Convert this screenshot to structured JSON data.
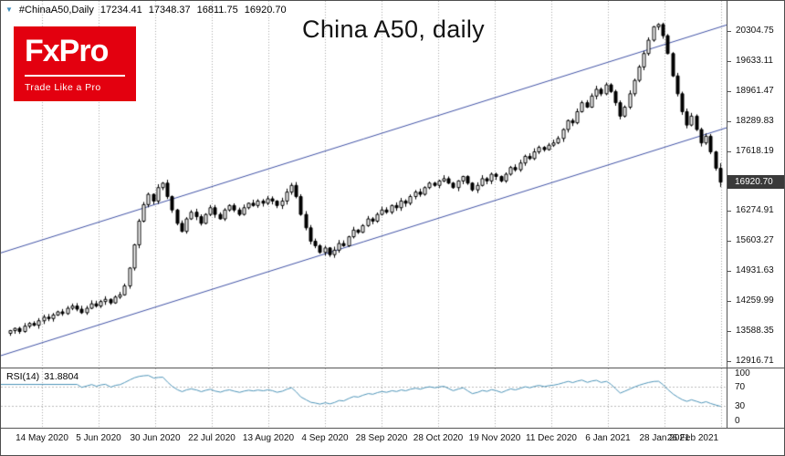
{
  "quote_bar": {
    "symbol": "#ChinaA50,Daily",
    "open": "17234.41",
    "high": "17348.37",
    "low": "16811.75",
    "close": "16920.70",
    "icon_color": "#3c8dbc"
  },
  "title": "China A50, daily",
  "logo": {
    "brand": "FxPro",
    "tagline": "Trade Like a Pro",
    "bg_color": "#e3000f",
    "text_color": "#ffffff"
  },
  "price_axis": {
    "current_price_tag": {
      "text": "16920.70",
      "bg": "#3a3a3a",
      "text_color": "#ffffff"
    }
  },
  "chart_data": {
    "type": "candlestick",
    "symbol": "#ChinaA50,Daily",
    "timeframe": "daily",
    "title": "China A50, daily",
    "y_axis": {
      "top": 20304.75,
      "step": 671.64,
      "bottom": 12916.71
    },
    "y_ticks": [
      "20304.75",
      "19633.11",
      "18961.47",
      "18289.83",
      "17618.19",
      "16946.55",
      "16274.91",
      "15603.27",
      "14931.63",
      "14259.99",
      "13588.35",
      "12916.71"
    ],
    "x_ticks": [
      "14 May 2020",
      "5 Jun 2020",
      "30 Jun 2020",
      "22 Jul 2020",
      "13 Aug 2020",
      "4 Sep 2020",
      "28 Sep 2020",
      "28 Oct 2020",
      "19 Nov 2020",
      "11 Dec 2020",
      "6 Jan 2021",
      "28 Jan 2021",
      "26 Feb 2021"
    ],
    "closes": [
      13600,
      13650,
      13580,
      13700,
      13760,
      13720,
      13820,
      13900,
      13870,
      13950,
      14020,
      13980,
      14100,
      14150,
      14080,
      14000,
      14100,
      14200,
      14150,
      14250,
      14300,
      14220,
      14350,
      14400,
      14600,
      15000,
      15520,
      16050,
      16420,
      16650,
      16500,
      16800,
      16900,
      16600,
      16300,
      16000,
      15820,
      16100,
      16250,
      16150,
      16000,
      16200,
      16350,
      16200,
      16100,
      16300,
      16400,
      16300,
      16200,
      16350,
      16450,
      16400,
      16500,
      16450,
      16550,
      16500,
      16400,
      16500,
      16700,
      16850,
      16600,
      16200,
      15900,
      15600,
      15500,
      15350,
      15450,
      15300,
      15400,
      15550,
      15500,
      15700,
      15850,
      15800,
      15950,
      16100,
      16050,
      16200,
      16300,
      16250,
      16400,
      16350,
      16500,
      16450,
      16600,
      16700,
      16650,
      16800,
      16900,
      16850,
      16950,
      17000,
      16900,
      16800,
      16950,
      17050,
      16900,
      16750,
      16850,
      17000,
      16950,
      17100,
      17050,
      16950,
      17100,
      17250,
      17200,
      17350,
      17500,
      17450,
      17600,
      17700,
      17650,
      17750,
      17800,
      17900,
      18100,
      18300,
      18250,
      18500,
      18700,
      18600,
      18850,
      19000,
      18900,
      19100,
      18950,
      18700,
      18400,
      18600,
      18900,
      19200,
      19500,
      19800,
      20100,
      20400,
      20450,
      20200,
      19800,
      19300,
      18900,
      18500,
      18200,
      18400,
      18100,
      17800,
      17950,
      17600,
      17234.41,
      16920.7
    ],
    "last_ohlc": {
      "open": 17234.41,
      "high": 17348.37,
      "low": 16811.75,
      "close": 16920.7
    },
    "trend_channel": {
      "color": "#3f51a5",
      "lower": {
        "start_price": 13050,
        "end_price": 18150
      },
      "upper": {
        "start_price": 15350,
        "end_price": 20450
      }
    },
    "indicator": {
      "name": "RSI",
      "period": 14,
      "label": "RSI(14)",
      "value_text": "31.8804",
      "levels": [
        70,
        30
      ],
      "scale_labels": [
        "100",
        "70",
        "30",
        "0"
      ],
      "line_color": "#4d94b8"
    },
    "candle_up_fill": "#ffffff",
    "candle_down_fill": "#000000",
    "candle_outline": "#000000",
    "grid_color": "#a8a8a8"
  }
}
